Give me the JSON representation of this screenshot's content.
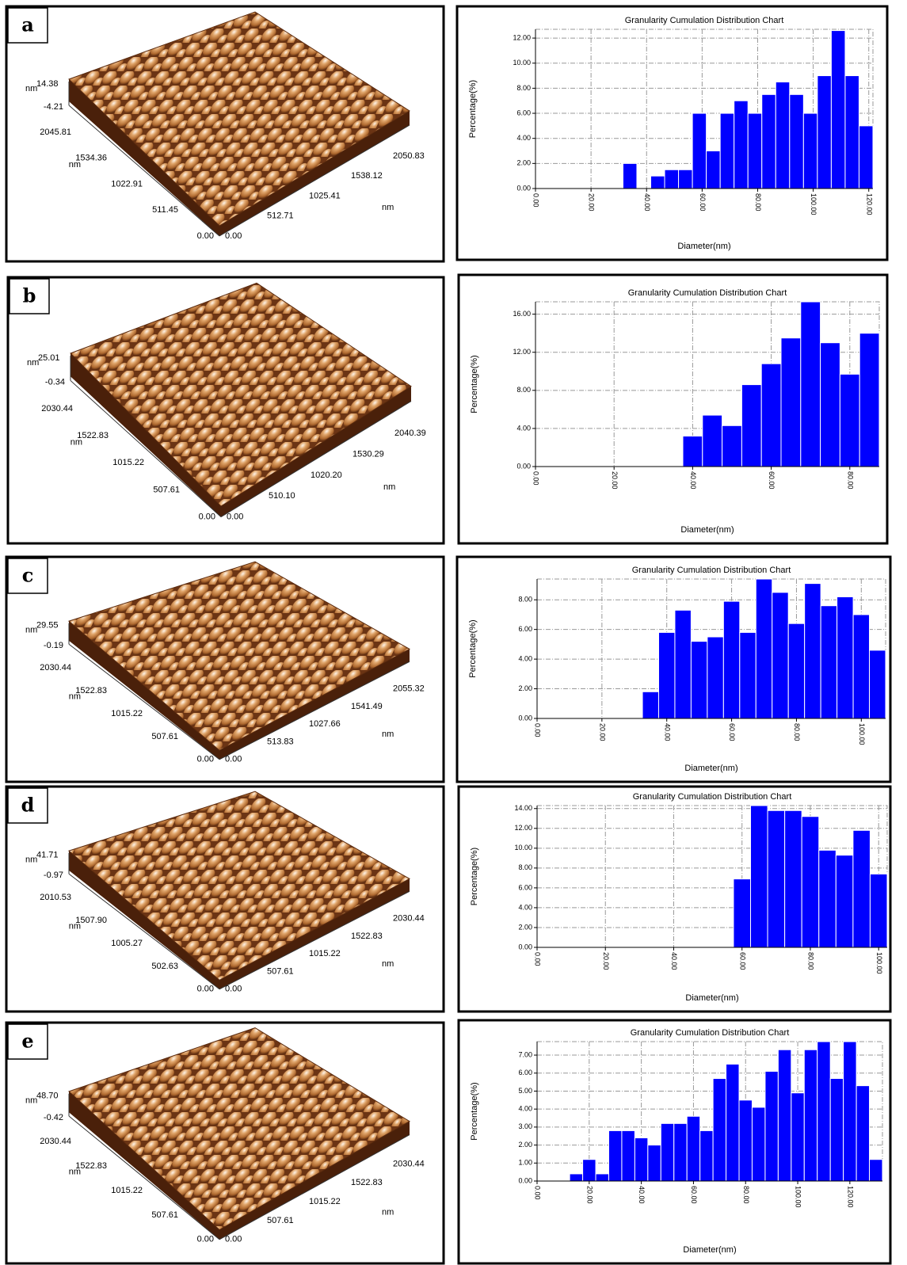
{
  "chart_data": [
    {
      "type": "histogram",
      "title": "Granularity Cumulation Distribution  Chart",
      "x_label": "Diameter(nm)",
      "y_label": "Percentage(%)",
      "color": "#0000ff",
      "grid": true,
      "bins": [
        31.5,
        36.5,
        41.5,
        46.5,
        51.5,
        56.5,
        61.5,
        66.5,
        71.5,
        76.5,
        81.5,
        86.5,
        91.5,
        96.5,
        101.5,
        106.5,
        111.5,
        116.5,
        121.5
      ],
      "values": [
        2,
        0,
        1,
        1.5,
        1.5,
        6,
        3,
        6,
        7,
        6,
        7.5,
        8.5,
        7.5,
        6,
        9,
        12.6,
        9,
        5
      ],
      "xlim": [
        0,
        121.5
      ],
      "ylim": [
        0,
        12.7
      ],
      "xticks": [
        {
          "value": 0,
          "label": "0.00"
        },
        {
          "value": 20,
          "label": "20.00"
        },
        {
          "value": 40,
          "label": "40.00"
        },
        {
          "value": 60,
          "label": "60.00"
        },
        {
          "value": 80,
          "label": "80.00"
        },
        {
          "value": 100,
          "label": "100.00"
        },
        {
          "value": 120,
          "label": "120.00"
        }
      ],
      "yticks": [
        {
          "value": 0,
          "label": "0.00"
        },
        {
          "value": 2,
          "label": "2.00"
        },
        {
          "value": 4,
          "label": "4.00"
        },
        {
          "value": 6,
          "label": "6.00"
        },
        {
          "value": 8,
          "label": "8.00"
        },
        {
          "value": 10,
          "label": "10.00"
        },
        {
          "value": 12,
          "label": "12.00"
        }
      ]
    },
    {
      "type": "histogram",
      "title": "Granularity Cumulation Distribution  Chart",
      "x_label": "Diameter(nm)",
      "y_label": "Percentage(%)",
      "color": "#0000ff",
      "grid": true,
      "bins": [
        37.5,
        42.5,
        47.5,
        52.5,
        57.5,
        62.5,
        67.5,
        72.5,
        77.5,
        82.5,
        87.5
      ],
      "values": [
        3.2,
        5.4,
        4.3,
        8.6,
        10.8,
        13.5,
        17.3,
        13.0,
        9.7,
        14.0
      ],
      "xlim": [
        0,
        87.5
      ],
      "ylim": [
        0,
        17.3
      ],
      "xticks": [
        {
          "value": 0,
          "label": "0.00"
        },
        {
          "value": 20,
          "label": "20.00"
        },
        {
          "value": 40,
          "label": "40.00"
        },
        {
          "value": 60,
          "label": "60.00"
        },
        {
          "value": 80,
          "label": "80.00"
        }
      ],
      "yticks": [
        {
          "value": 0,
          "label": "0.00"
        },
        {
          "value": 4,
          "label": "4.00"
        },
        {
          "value": 8,
          "label": "8.00"
        },
        {
          "value": 12,
          "label": "12.00"
        },
        {
          "value": 16,
          "label": "16.00"
        }
      ]
    },
    {
      "type": "histogram",
      "title": "Granularity Cumulation Distribution  Chart",
      "x_label": "Diameter(nm)",
      "y_label": "Percentage(%)",
      "color": "#0000ff",
      "grid": true,
      "bins": [
        32.5,
        37.5,
        42.5,
        47.5,
        52.5,
        57.5,
        62.5,
        67.5,
        72.5,
        77.5,
        82.5,
        87.5,
        92.5,
        97.5,
        102.5,
        107.5
      ],
      "values": [
        1.8,
        5.8,
        7.3,
        5.2,
        5.5,
        7.9,
        5.8,
        9.4,
        8.5,
        6.4,
        9.1,
        7.6,
        8.2,
        7.0,
        4.6
      ],
      "xlim": [
        0,
        107.5
      ],
      "ylim": [
        0,
        9.4
      ],
      "xticks": [
        {
          "value": 0,
          "label": "0.00"
        },
        {
          "value": 20,
          "label": "20.00"
        },
        {
          "value": 40,
          "label": "40.00"
        },
        {
          "value": 60,
          "label": "60.00"
        },
        {
          "value": 80,
          "label": "80.00"
        },
        {
          "value": 100,
          "label": "100.00"
        }
      ],
      "yticks": [
        {
          "value": 0,
          "label": "0.00"
        },
        {
          "value": 2,
          "label": "2.00"
        },
        {
          "value": 4,
          "label": "4.00"
        },
        {
          "value": 6,
          "label": "6.00"
        },
        {
          "value": 8,
          "label": "8.00"
        }
      ]
    },
    {
      "type": "histogram",
      "title": "Granularity Cumulation Distribution  Chart",
      "x_label": "Diameter(nm)",
      "y_label": "Percentage(%)",
      "color": "#0000ff",
      "grid": true,
      "bins": [
        57.5,
        62.5,
        67.5,
        72.5,
        77.5,
        82.5,
        87.5,
        92.5,
        97.5,
        102.5
      ],
      "values": [
        6.9,
        14.3,
        13.8,
        13.8,
        13.2,
        9.8,
        9.3,
        11.8,
        7.4
      ],
      "xlim": [
        0,
        102.5
      ],
      "ylim": [
        0,
        14.3
      ],
      "xticks": [
        {
          "value": 0,
          "label": "0.00"
        },
        {
          "value": 20,
          "label": "20.00"
        },
        {
          "value": 40,
          "label": "40.00"
        },
        {
          "value": 60,
          "label": "60.00"
        },
        {
          "value": 80,
          "label": "80.00"
        },
        {
          "value": 100,
          "label": "100.00"
        }
      ],
      "yticks": [
        {
          "value": 0,
          "label": "0.00"
        },
        {
          "value": 2,
          "label": "2.00"
        },
        {
          "value": 4,
          "label": "4.00"
        },
        {
          "value": 6,
          "label": "6.00"
        },
        {
          "value": 8,
          "label": "8.00"
        },
        {
          "value": 10,
          "label": "10.00"
        },
        {
          "value": 12,
          "label": "12.00"
        },
        {
          "value": 14,
          "label": "14.00"
        }
      ]
    },
    {
      "type": "histogram",
      "title": "Granularity Cumulation Distribution  Chart",
      "x_label": "Diameter(nm)",
      "y_label": "Percentage(%)",
      "color": "#0000ff",
      "grid": true,
      "bins": [
        12.5,
        17.5,
        22.5,
        27.5,
        32.5,
        37.5,
        42.5,
        47.5,
        52.5,
        57.5,
        62.5,
        67.5,
        72.5,
        77.5,
        82.5,
        87.5,
        92.5,
        97.5,
        102.5,
        107.5,
        112.5,
        117.5,
        122.5,
        127.5,
        132.5
      ],
      "values": [
        0.4,
        1.2,
        0.4,
        2.8,
        2.8,
        2.4,
        2.0,
        3.2,
        3.2,
        3.6,
        2.8,
        5.7,
        6.5,
        4.5,
        4.1,
        6.1,
        7.3,
        4.9,
        7.3,
        7.75,
        5.7,
        7.75,
        5.3,
        1.2
      ],
      "xlim": [
        0,
        132.5
      ],
      "ylim": [
        0,
        7.75
      ],
      "xticks": [
        {
          "value": 0,
          "label": "0.00"
        },
        {
          "value": 20,
          "label": "20.00"
        },
        {
          "value": 40,
          "label": "40.00"
        },
        {
          "value": 60,
          "label": "60.00"
        },
        {
          "value": 80,
          "label": "80.00"
        },
        {
          "value": 100,
          "label": "100.00"
        },
        {
          "value": 120,
          "label": "120.00"
        }
      ],
      "yticks": [
        {
          "value": 0,
          "label": "0.00"
        },
        {
          "value": 1,
          "label": "1.00"
        },
        {
          "value": 2,
          "label": "2.00"
        },
        {
          "value": 3,
          "label": "3.00"
        },
        {
          "value": 4,
          "label": "4.00"
        },
        {
          "value": 5,
          "label": "5.00"
        },
        {
          "value": 6,
          "label": "6.00"
        },
        {
          "value": 7,
          "label": "7.00"
        }
      ]
    }
  ],
  "afm_images": [
    {
      "label": "a",
      "z_unit": "nm",
      "z_max": "14.38",
      "z_min": "-4.21",
      "y_unit": "nm",
      "y_ticks": [
        "0.00",
        "511.45",
        "1022.91",
        "1534.36",
        "2045.81"
      ],
      "x_unit": "nm",
      "x_ticks": [
        "0.00",
        "512.71",
        "1025.41",
        "1538.12",
        "2050.83"
      ]
    },
    {
      "label": "b",
      "z_unit": "nm",
      "z_max": "25.01",
      "z_min": "-0.34",
      "y_unit": "nm",
      "y_ticks": [
        "0.00",
        "507.61",
        "1015.22",
        "1522.83",
        "2030.44"
      ],
      "x_unit": "nm",
      "x_ticks": [
        "0.00",
        "510.10",
        "1020.20",
        "1530.29",
        "2040.39"
      ]
    },
    {
      "label": "c",
      "z_unit": "nm",
      "z_max": "29.55",
      "z_min": "-0.19",
      "y_unit": "nm",
      "y_ticks": [
        "0.00",
        "507.61",
        "1015.22",
        "1522.83",
        "2030.44"
      ],
      "x_unit": "nm",
      "x_ticks": [
        "0.00",
        "513.83",
        "1027.66",
        "1541.49",
        "2055.32"
      ]
    },
    {
      "label": "d",
      "z_unit": "nm",
      "z_max": "41.71",
      "z_min": "-0.97",
      "y_unit": "nm",
      "y_ticks": [
        "0.00",
        "502.63",
        "1005.27",
        "1507.90",
        "2010.53"
      ],
      "x_unit": "nm",
      "x_ticks": [
        "0.00",
        "507.61",
        "1015.22",
        "1522.83",
        "2030.44"
      ]
    },
    {
      "label": "e",
      "z_unit": "nm",
      "z_max": "48.70",
      "z_min": "-0.42",
      "y_unit": "nm",
      "y_ticks": [
        "0.00",
        "507.61",
        "1015.22",
        "1522.83",
        "2030.44"
      ],
      "x_unit": "nm",
      "x_ticks": [
        "0.00",
        "507.61",
        "1015.22",
        "1522.83",
        "2030.44"
      ]
    }
  ]
}
